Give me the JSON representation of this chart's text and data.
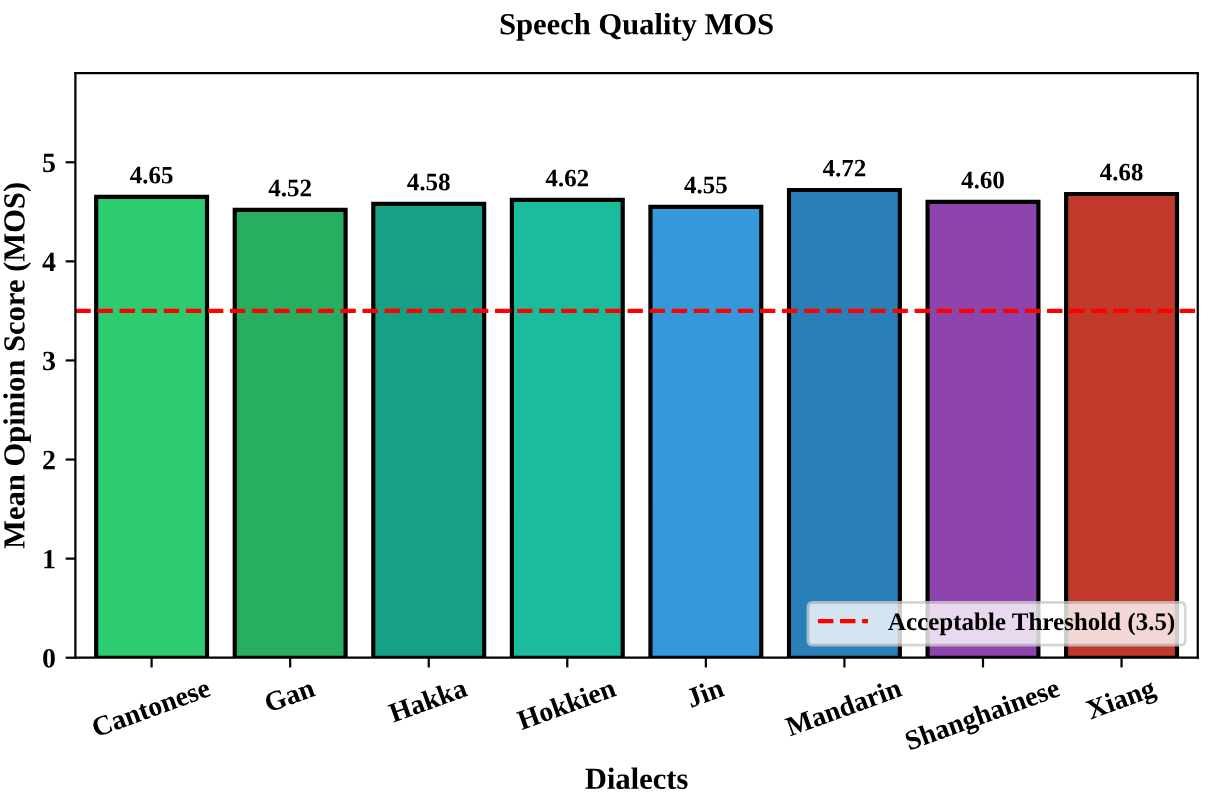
{
  "chart_data": {
    "type": "bar",
    "title": "Speech Quality MOS",
    "xlabel": "Dialects",
    "ylabel": "Mean Opinion Score (MOS)",
    "categories": [
      "Cantonese",
      "Gan",
      "Hakka",
      "Hokkien",
      "Jin",
      "Mandarin",
      "Shanghainese",
      "Xiang"
    ],
    "values": [
      4.65,
      4.52,
      4.58,
      4.62,
      4.55,
      4.72,
      4.6,
      4.68
    ],
    "value_labels": [
      "4.65",
      "4.52",
      "4.58",
      "4.62",
      "4.55",
      "4.72",
      "4.60",
      "4.68"
    ],
    "colors": [
      "#2ecc71",
      "#27ae60",
      "#16a085",
      "#1abc9c",
      "#3498db",
      "#2980b9",
      "#8e44ad",
      "#c0392b"
    ],
    "ylim": [
      0,
      5.9
    ],
    "yticks": [
      0,
      1,
      2,
      3,
      4,
      5
    ],
    "ref_lines": [
      {
        "axis": "y",
        "value": 3.5,
        "label": "Acceptable Threshold (3.5)",
        "color": "#ff0000",
        "line_style": "dashed"
      }
    ],
    "legend": "bottom right",
    "grid": false
  }
}
